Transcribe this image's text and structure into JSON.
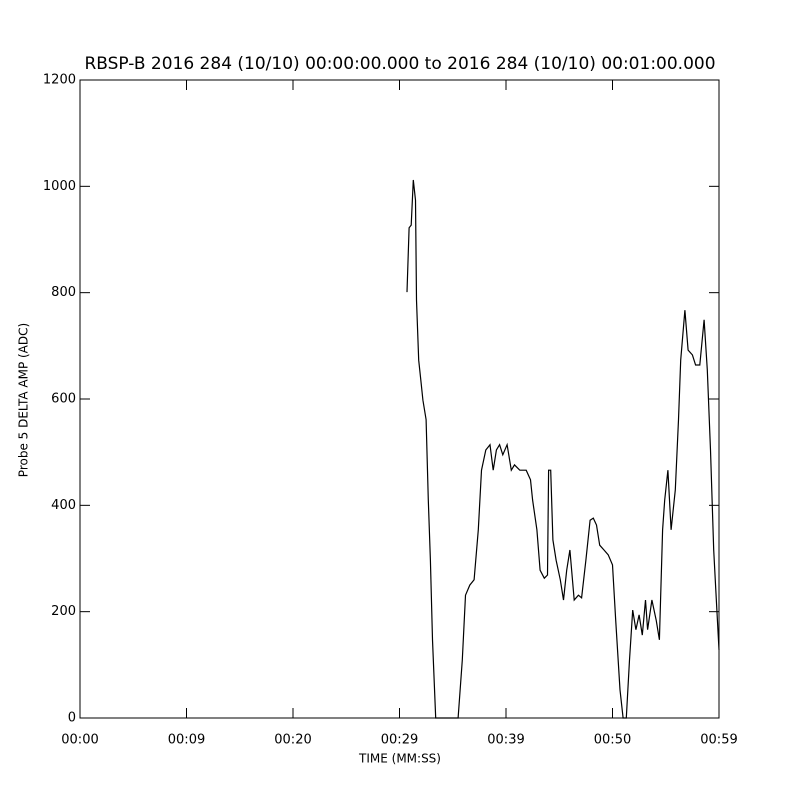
{
  "chart_data": {
    "type": "line",
    "title": "RBSP-B 2016 284 (10/10) 00:00:00.000 to 2016 284 (10/10) 00:01:00.000",
    "x_label": "TIME (MM:SS)",
    "y_label": "Probe 5 DELTA AMP (ADC)",
    "color": "#000000",
    "x": [
      30.7,
      30.9,
      31.1,
      31.3,
      31.5,
      31.6,
      31.8,
      32.0,
      32.2,
      32.5,
      32.7,
      32.9,
      33.1,
      33.4,
      35.5,
      35.9,
      36.2,
      36.6,
      37.0,
      37.4,
      37.7,
      38.1,
      38.5,
      38.8,
      39.1,
      39.4,
      39.7,
      40.1,
      40.5,
      40.8,
      41.3,
      41.9,
      42.3,
      42.5,
      42.9,
      43.2,
      43.6,
      43.9,
      44.0,
      44.2,
      44.4,
      44.7,
      45.1,
      45.4,
      45.7,
      46.0,
      46.4,
      46.8,
      47.1,
      47.5,
      47.9,
      48.2,
      48.5,
      48.8,
      49.2,
      49.6,
      50.0,
      50.3,
      50.7,
      51.0,
      51.3,
      51.6,
      51.9,
      52.2,
      52.5,
      52.8,
      53.1,
      53.3,
      53.7,
      54.1,
      54.4,
      54.7,
      54.9,
      55.2,
      55.5,
      55.9,
      56.2,
      56.4,
      56.8,
      57.1,
      57.5,
      57.8,
      58.2,
      58.6,
      58.9,
      59.2,
      59.5,
      59.7,
      60.0
    ],
    "values": [
      801,
      922,
      927,
      1012,
      974,
      786,
      673,
      636,
      598,
      561,
      410,
      297,
      147,
      0,
      0,
      109,
      231,
      250,
      260,
      354,
      466,
      504,
      514,
      466,
      504,
      514,
      495,
      514,
      466,
      476,
      466,
      466,
      448,
      410,
      354,
      278,
      263,
      269,
      466,
      466,
      335,
      297,
      260,
      222,
      278,
      316,
      222,
      231,
      226,
      297,
      372,
      376,
      363,
      325,
      316,
      307,
      288,
      184,
      53,
      0,
      0,
      109,
      203,
      166,
      194,
      156,
      222,
      166,
      222,
      184,
      147,
      354,
      410,
      466,
      354,
      429,
      561,
      673,
      767,
      692,
      683,
      664,
      664,
      749,
      655,
      504,
      316,
      241,
      128
    ],
    "xlim": [
      0,
      60
    ],
    "xticks": [
      {
        "value": 0,
        "label": "00:00"
      },
      {
        "value": 10,
        "label": "00:09"
      },
      {
        "value": 20,
        "label": "00:20"
      },
      {
        "value": 30,
        "label": "00:29"
      },
      {
        "value": 40,
        "label": "00:39"
      },
      {
        "value": 50,
        "label": "00:50"
      },
      {
        "value": 60,
        "label": "00:59"
      }
    ],
    "ylim": [
      0,
      1200
    ],
    "yticks": [
      0,
      200,
      400,
      600,
      800,
      1000,
      1200
    ]
  }
}
